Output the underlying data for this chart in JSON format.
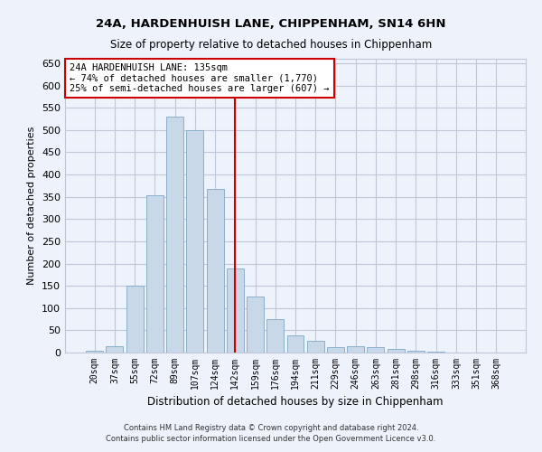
{
  "title1": "24A, HARDENHUISH LANE, CHIPPENHAM, SN14 6HN",
  "title2": "Size of property relative to detached houses in Chippenham",
  "xlabel": "Distribution of detached houses by size in Chippenham",
  "ylabel": "Number of detached properties",
  "categories": [
    "20sqm",
    "37sqm",
    "55sqm",
    "72sqm",
    "89sqm",
    "107sqm",
    "124sqm",
    "142sqm",
    "159sqm",
    "176sqm",
    "194sqm",
    "211sqm",
    "229sqm",
    "246sqm",
    "263sqm",
    "281sqm",
    "298sqm",
    "316sqm",
    "333sqm",
    "351sqm",
    "368sqm"
  ],
  "values": [
    5,
    15,
    150,
    353,
    530,
    500,
    367,
    188,
    125,
    75,
    38,
    27,
    12,
    15,
    12,
    8,
    4,
    2,
    1,
    1,
    1
  ],
  "bar_color": "#c8d8e8",
  "bar_edge_color": "#8ab0cc",
  "vline_x": 7,
  "vline_color": "#cc0000",
  "annotation_text": "24A HARDENHUISH LANE: 135sqm\n← 74% of detached houses are smaller (1,770)\n25% of semi-detached houses are larger (607) →",
  "annotation_box_color": "#ffffff",
  "annotation_box_edge_color": "#cc0000",
  "ylim": [
    0,
    660
  ],
  "yticks": [
    0,
    50,
    100,
    150,
    200,
    250,
    300,
    350,
    400,
    450,
    500,
    550,
    600,
    650
  ],
  "background_color": "#eef2fb",
  "grid_color": "#c0c8d8",
  "footer1": "Contains HM Land Registry data © Crown copyright and database right 2024.",
  "footer2": "Contains public sector information licensed under the Open Government Licence v3.0."
}
